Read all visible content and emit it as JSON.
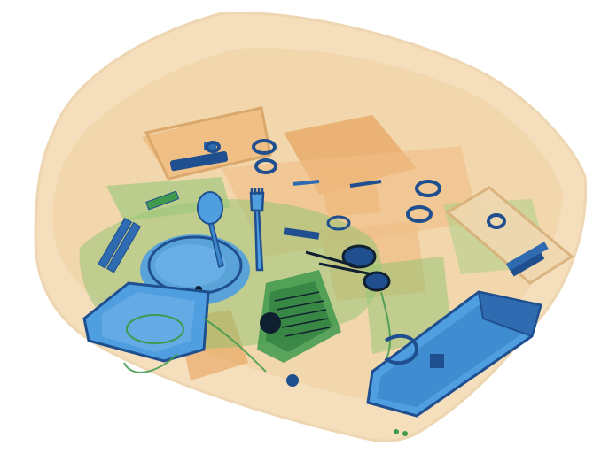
{
  "image": {
    "kind": "x-ray-baggage-scan",
    "background": "#ffffff",
    "palette": {
      "organic_light": "#f3d9b0",
      "organic_mid": "#eeb77a",
      "organic_dark": "#e59a4f",
      "mixed_green": "#7fc36b",
      "mixed_dark": "#3f9a4d",
      "inorganic_blue": "#4f9fe0",
      "inorganic_dark": "#1f4f8f",
      "metal_black": "#102030"
    },
    "objects": [
      "bag-outline",
      "plastic-container-left",
      "round-bowl",
      "spoon",
      "fork",
      "scissors",
      "electronics-cluster",
      "long-case-right",
      "small-box-top-left",
      "small-box-right",
      "rings",
      "cables"
    ]
  }
}
